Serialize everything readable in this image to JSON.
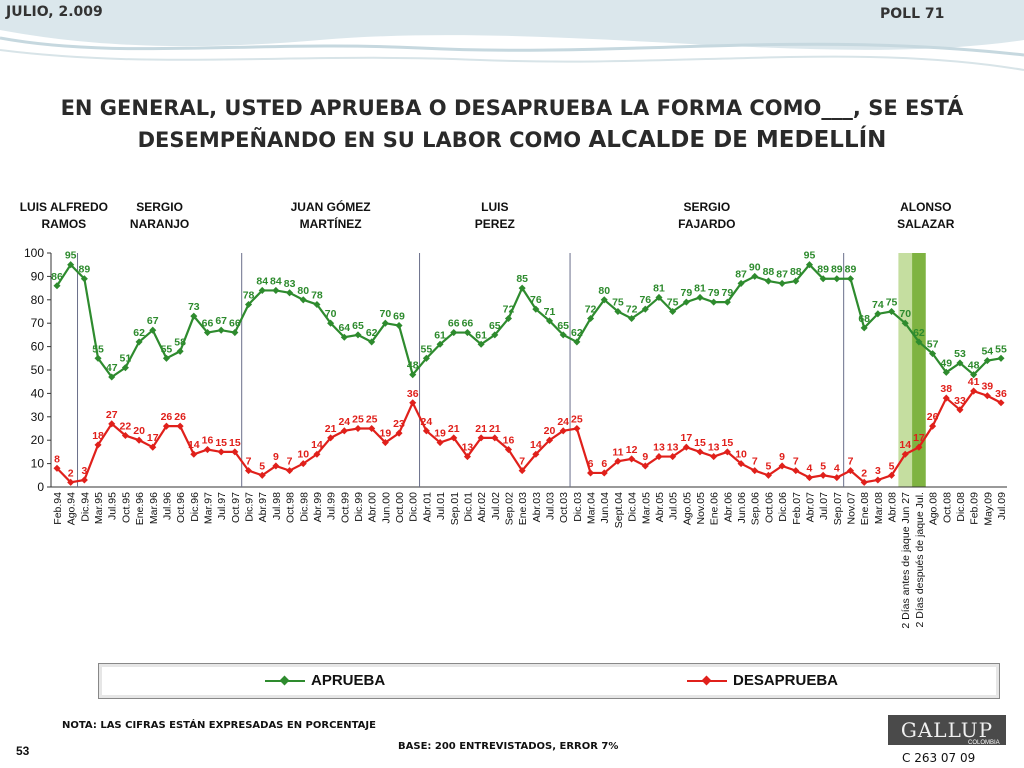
{
  "header": {
    "date": "JULIO, 2.009",
    "poll": "POLL 71"
  },
  "title": {
    "line1": "EN GENERAL, USTED APRUEBA O DESAPRUEBA LA FORMA COMO___, SE ESTÁ",
    "line2_prefix": "DESEMPEÑANDO EN SU LABOR COMO ",
    "line2_emph": "ALCALDE DE MEDELLÍN"
  },
  "colors": {
    "aprueba": "#2e8b2e",
    "desaprueba": "#e0201b",
    "highlight_light": "#c5dea0",
    "highlight_dark": "#7fb341"
  },
  "mayors": [
    {
      "line1": "LUIS ALFREDO",
      "line2": "RAMOS"
    },
    {
      "line1": "SERGIO",
      "line2": "NARANJO"
    },
    {
      "line1": "JUAN GÓMEZ",
      "line2": "MARTÍNEZ"
    },
    {
      "line1": "LUIS",
      "line2": "PEREZ"
    },
    {
      "line1": "SERGIO",
      "line2": "FAJARDO"
    },
    {
      "line1": "ALONSO",
      "line2": "SALAZAR"
    }
  ],
  "chart_data": {
    "type": "line",
    "categories": [
      "Feb.94",
      "Ago.94",
      "Dic.94",
      "Mar.95",
      "Jul.95",
      "Oct.95",
      "Ene.96",
      "Mar.96",
      "Jul.96",
      "Oct.96",
      "Dic.96",
      "Mar.97",
      "Jul.97",
      "Oct.97",
      "Dic.97",
      "Abr.97",
      "Jul.98",
      "Oct.98",
      "Dic.98",
      "Abr.99",
      "Jul.99",
      "Oct.99",
      "Dic.99",
      "Abr.00",
      "Jun.00",
      "Oct.00",
      "Dic.00",
      "Abr.01",
      "Jul.01",
      "Sep.01",
      "Dic.01",
      "Abr.02",
      "Jul.02",
      "Sep.02",
      "Ene.03",
      "Abr.03",
      "Jul.03",
      "Oct.03",
      "Dic.03",
      "Mar.04",
      "Jun.04",
      "Sept.04",
      "Dic.04",
      "Mar.05",
      "Abr.05",
      "Jul.05",
      "Ago.05",
      "Nov.05",
      "Ene.06",
      "Abr.06",
      "Jun.06",
      "Sep.06",
      "Oct.06",
      "Dic.06",
      "Feb.07",
      "Abr.07",
      "Jul.07",
      "Sep.07",
      "Nov.07",
      "Ene.08",
      "Mar.08",
      "Abr.08",
      "2 Días antes de jaque Jun 27",
      "2 Días después de jaque Jul.",
      "Ago.08",
      "Oct.08",
      "Dic.08",
      "Feb.09",
      "May.09",
      "Jul.09"
    ],
    "series": [
      {
        "name": "APRUEBA",
        "values": [
          86,
          95,
          89,
          55,
          47,
          51,
          62,
          67,
          55,
          58,
          73,
          66,
          67,
          66,
          78,
          84,
          84,
          83,
          80,
          78,
          70,
          64,
          65,
          62,
          70,
          69,
          48,
          55,
          61,
          66,
          66,
          61,
          65,
          72,
          85,
          76,
          71,
          65,
          62,
          72,
          80,
          75,
          72,
          76,
          81,
          75,
          79,
          81,
          79,
          79,
          87,
          90,
          88,
          87,
          88,
          95,
          89,
          89,
          89,
          68,
          74,
          75,
          70,
          62,
          57,
          49,
          53,
          48,
          54,
          55
        ]
      },
      {
        "name": "DESAPRUEBA",
        "values": [
          8,
          2,
          3,
          18,
          27,
          22,
          20,
          17,
          26,
          26,
          14,
          16,
          15,
          15,
          7,
          5,
          9,
          7,
          10,
          14,
          21,
          24,
          25,
          25,
          19,
          23,
          36,
          24,
          19,
          21,
          13,
          21,
          21,
          16,
          7,
          14,
          20,
          24,
          25,
          6,
          6,
          11,
          12,
          9,
          13,
          13,
          17,
          15,
          13,
          15,
          10,
          7,
          5,
          9,
          7,
          4,
          5,
          4,
          7,
          2,
          3,
          5,
          14,
          17,
          26,
          38,
          33,
          41,
          39,
          36
        ]
      }
    ],
    "ylim": [
      0,
      100
    ],
    "yticks": [
      0,
      10,
      20,
      30,
      40,
      50,
      60,
      70,
      80,
      90,
      100
    ],
    "grid": false,
    "legend_position": "bottom",
    "mayor_boundaries_after_index": [
      1,
      13,
      26,
      37,
      57
    ],
    "highlight_indices": [
      62,
      63
    ]
  },
  "legend": {
    "aprueba": "APRUEBA",
    "desaprueba": "DESAPRUEBA"
  },
  "footer": {
    "note": "NOTA: LAS CIFRAS ESTÁN EXPRESADAS EN PORCENTAJE",
    "base": "BASE: 200 ENTREVISTADOS, ERROR 7%",
    "page": "53",
    "logo": "GALLUP",
    "logo_sub": "COLOMBIA",
    "code": "C 263 07 09"
  }
}
